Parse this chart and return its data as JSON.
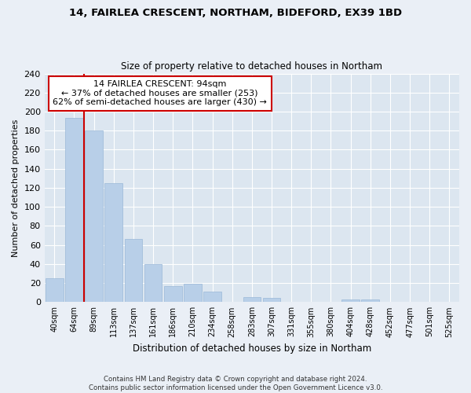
{
  "title1": "14, FAIRLEA CRESCENT, NORTHAM, BIDEFORD, EX39 1BD",
  "title2": "Size of property relative to detached houses in Northam",
  "xlabel": "Distribution of detached houses by size in Northam",
  "ylabel": "Number of detached properties",
  "bar_labels": [
    "40sqm",
    "64sqm",
    "89sqm",
    "113sqm",
    "137sqm",
    "161sqm",
    "186sqm",
    "210sqm",
    "234sqm",
    "258sqm",
    "283sqm",
    "307sqm",
    "331sqm",
    "355sqm",
    "380sqm",
    "404sqm",
    "428sqm",
    "452sqm",
    "477sqm",
    "501sqm",
    "525sqm"
  ],
  "bar_values": [
    25,
    193,
    180,
    125,
    66,
    40,
    17,
    19,
    11,
    0,
    5,
    4,
    0,
    0,
    0,
    3,
    3,
    0,
    0,
    0,
    0
  ],
  "bar_color": "#b8cfe8",
  "bar_edge_color": "#9ab8d8",
  "vline_x_index": 1,
  "vline_color": "#cc0000",
  "annotation_title": "14 FAIRLEA CRESCENT: 94sqm",
  "annotation_line1": "← 37% of detached houses are smaller (253)",
  "annotation_line2": "62% of semi-detached houses are larger (430) →",
  "annotation_box_color": "#ffffff",
  "annotation_box_edge": "#cc0000",
  "ylim": [
    0,
    240
  ],
  "yticks": [
    0,
    20,
    40,
    60,
    80,
    100,
    120,
    140,
    160,
    180,
    200,
    220,
    240
  ],
  "background_color": "#eaeff6",
  "plot_bg_color": "#dce6f0",
  "footer1": "Contains HM Land Registry data © Crown copyright and database right 2024.",
  "footer2": "Contains public sector information licensed under the Open Government Licence v3.0."
}
